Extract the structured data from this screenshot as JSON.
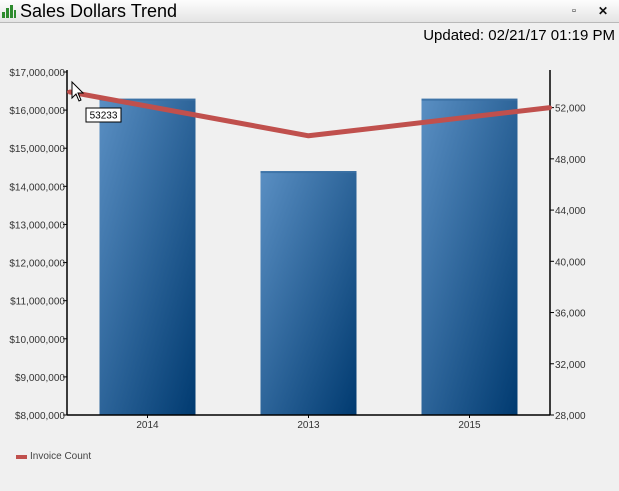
{
  "window": {
    "title": "Sales Dollars Trend",
    "minimize_label": "▫",
    "close_label": "✕"
  },
  "updated_text": "Updated: 02/21/17 01:19 PM",
  "tooltip": {
    "text": "53233"
  },
  "colors": {
    "bar_light": "#5a8fc3",
    "bar_dark": "#003a70",
    "line": "#c0504d",
    "icon_green": "#2e8b2e"
  },
  "chart_data": {
    "type": "bar",
    "categories": [
      "2014",
      "2013",
      "2015"
    ],
    "series": [
      {
        "type": "bar",
        "axis": "left",
        "values": [
          16300000,
          14400000,
          16300000
        ]
      },
      {
        "name": "Invoice Count",
        "type": "line",
        "axis": "right",
        "values": [
          53233,
          49800,
          52000
        ]
      }
    ],
    "y_left": {
      "min": 8000000,
      "max": 17000000,
      "ticks": [
        "$8,000,000",
        "$9,000,000",
        "$10,000,000",
        "$11,000,000",
        "$12,000,000",
        "$13,000,000",
        "$14,000,000",
        "$15,000,000",
        "$16,000,000",
        "$17,000,000"
      ]
    },
    "y_right": {
      "min": 28000,
      "max": 54000,
      "tick_values": [
        28000,
        32000,
        36000,
        40000,
        44000,
        48000,
        52000
      ],
      "ticks": [
        "28,000",
        "32,000",
        "36,000",
        "40,000",
        "44,000",
        "48,000",
        "52,000"
      ]
    },
    "legend": {
      "position": "bottom-left",
      "entries": [
        "Invoice Count"
      ]
    },
    "grid": false
  }
}
